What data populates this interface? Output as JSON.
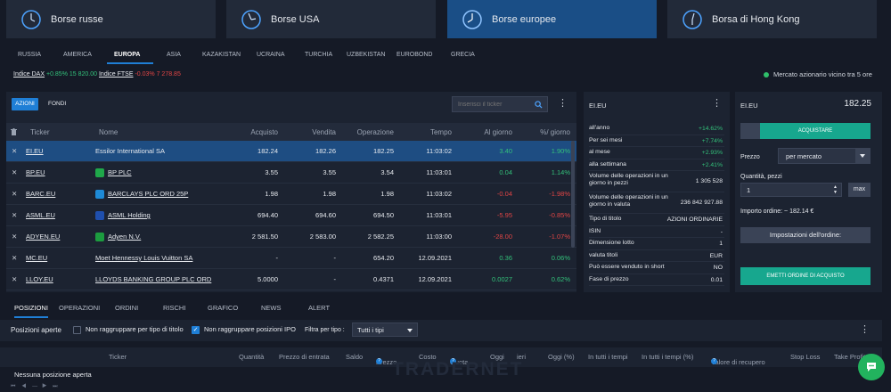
{
  "exchanges": [
    {
      "label": "Borse russe",
      "active": false
    },
    {
      "label": "Borse USA",
      "active": false
    },
    {
      "label": "Borse europee",
      "active": true
    },
    {
      "label": "Borsa di Hong Kong",
      "active": false
    }
  ],
  "region_tabs": [
    "RUSSIA",
    "AMERICA",
    "EUROPA",
    "ASIA",
    "KAZAKISTAN",
    "UCRAINA",
    "TURCHIA",
    "UZBEKISTAN",
    "EUROBOND",
    "GRECIA"
  ],
  "indices": [
    {
      "name": "Indice DAX",
      "change": "+0.85%",
      "value": "15 820.00"
    },
    {
      "name": "Indice FTSE",
      "change": "-0.03%",
      "value": "7 278.85"
    }
  ],
  "market_status": "Mercato azionario vicino tra 5 ore",
  "quotes": {
    "tab_stocks": "AZIONI",
    "tab_funds": "FONDI",
    "search_placeholder": "Inserisci il ticker",
    "columns": {
      "ticker": "Ticker",
      "name": "Nome",
      "bid": "Acquisto",
      "ask": "Vendita",
      "last": "Operazione",
      "time": "Tempo",
      "chg": "Al giorno",
      "pct": "%/ giorno"
    },
    "rows": [
      {
        "ticker": "EI.EU",
        "name": "Essilor International SA",
        "bid": "182.24",
        "ask": "182.26",
        "last": "182.25",
        "time": "11:03:02",
        "chg": "3.40",
        "pct": "1.90%",
        "dir": "pos"
      },
      {
        "ticker": "BP.EU",
        "name": "BP PLC",
        "bid": "3.55",
        "ask": "3.55",
        "last": "3.54",
        "time": "11:03:01",
        "chg": "0.04",
        "pct": "1.14%",
        "dir": "pos"
      },
      {
        "ticker": "BARC.EU",
        "name": "BARCLAYS PLC ORD 25P",
        "bid": "1.98",
        "ask": "1.98",
        "last": "1.98",
        "time": "11:03:02",
        "chg": "-0.04",
        "pct": "-1.98%",
        "dir": "neg"
      },
      {
        "ticker": "ASML.EU",
        "name": "ASML Holding",
        "bid": "694.40",
        "ask": "694.60",
        "last": "694.50",
        "time": "11:03:01",
        "chg": "-5.95",
        "pct": "-0.85%",
        "dir": "neg"
      },
      {
        "ticker": "ADYEN.EU",
        "name": "Adyen N.V.",
        "bid": "2 581.50",
        "ask": "2 583.00",
        "last": "2 582.25",
        "time": "11:03:00",
        "chg": "-28.00",
        "pct": "-1.07%",
        "dir": "neg"
      },
      {
        "ticker": "MC.EU",
        "name": "Moet Hennessy Louis Vuitton SA",
        "bid": "-",
        "ask": "-",
        "last": "654.20",
        "time": "12.09.2021",
        "chg": "0.36",
        "pct": "0.06%",
        "dir": "pos"
      },
      {
        "ticker": "LLOY.EU",
        "name": "LLOYDS BANKING GROUP PLC ORD",
        "bid": "5.0000",
        "ask": "-",
        "last": "0.4371",
        "time": "12.09.2021",
        "chg": "0.0027",
        "pct": "0.62%",
        "dir": "pos"
      }
    ]
  },
  "info": {
    "title": "EI.EU",
    "rows": [
      {
        "label": "all'anno",
        "value": "+14.62%",
        "color": "pos"
      },
      {
        "label": "Per sei mesi",
        "value": "+7.74%",
        "color": "pos"
      },
      {
        "label": "al mese",
        "value": "+2.93%",
        "color": "pos"
      },
      {
        "label": "alla settimana",
        "value": "+2.41%",
        "color": "pos"
      },
      {
        "label": "Volume delle operazioni in un giorno in pezzi",
        "value": "1 305 528",
        "color": ""
      },
      {
        "label": "Volume delle operazioni in un giorno in valuta",
        "value": "236 842 927.88",
        "color": ""
      },
      {
        "label": "Tipo di titolo",
        "value": "AZIONI ORDINARIE",
        "color": ""
      },
      {
        "label": "ISIN",
        "value": "-",
        "color": ""
      },
      {
        "label": "Dimensione lotto",
        "value": "1",
        "color": ""
      },
      {
        "label": "valuta titoli",
        "value": "EUR",
        "color": ""
      },
      {
        "label": "Può essere venduto in short",
        "value": "NO",
        "color": ""
      },
      {
        "label": "Fase di prezzo",
        "value": "0.01",
        "color": ""
      }
    ]
  },
  "order": {
    "ticker": "EI.EU",
    "price": "182.25",
    "buy_label": "ACQUISTARE",
    "price_label": "Prezzo",
    "price_value": "per mercato",
    "qty_label": "Quantità, pezzi",
    "qty_value": "1",
    "max_label": "max",
    "amount_label": "Importo ordine:",
    "amount_value": "~ 182.14 €",
    "settings_label": "Impostazioni dell'ordine:",
    "submit_label": "EMETTI ORDINE DI ACQUISTO"
  },
  "bottom_tabs": [
    "POSIZIONI",
    "OPERAZIONI",
    "ORDINI",
    "RISCHI",
    "GRAFICO",
    "NEWS",
    "ALERT"
  ],
  "positions": {
    "title": "Posizioni aperte",
    "chk1": "Non raggruppare per tipo di titolo",
    "chk2": "Non raggruppare posizioni IPO",
    "filter_label": "Filtra per tipo :",
    "filter_value": "Tutti i tipi",
    "columns": [
      "Ticker",
      "Quantità",
      "Prezzo di entrata",
      "Saldo",
      "Prezzo",
      "Costo",
      "Quota",
      "Oggi",
      "ieri",
      "Oggi (%)",
      "In tutti i tempi",
      "In tutti i tempi (%)",
      "Valore di recupero",
      "Stop Loss",
      "Take Profit"
    ],
    "empty": "Nessuna posizione aperta",
    "watermark": "TRADERNET"
  },
  "colors": {
    "accent": "#1f7fd6",
    "positive": "#33c07a",
    "negative": "#e04545",
    "background": "#151a26"
  }
}
